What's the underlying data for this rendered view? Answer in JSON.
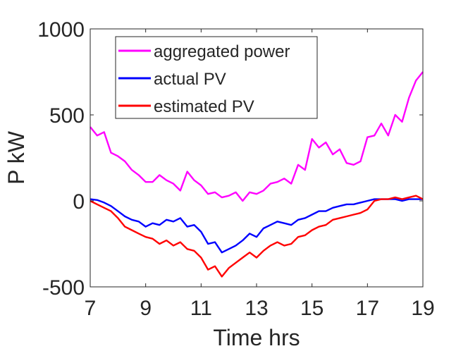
{
  "chart_data": {
    "type": "line",
    "title": "",
    "xlabel": "Time hrs",
    "ylabel": "P kW",
    "xlim": [
      7,
      19
    ],
    "ylim": [
      -500,
      1000
    ],
    "xticks": [
      7,
      9,
      11,
      13,
      15,
      17,
      19
    ],
    "yticks": [
      -500,
      0,
      500,
      1000
    ],
    "xtick_labels": [
      "7",
      "9",
      "11",
      "13",
      "15",
      "17",
      "19"
    ],
    "ytick_labels": [
      "-500",
      "0",
      "500",
      "1000"
    ],
    "grid": false,
    "legend_position": "top-center",
    "series": [
      {
        "name": "aggregated power",
        "color": "#ff00ff",
        "x": [
          7.0,
          7.25,
          7.5,
          7.75,
          8.0,
          8.25,
          8.5,
          8.75,
          9.0,
          9.25,
          9.5,
          9.75,
          10.0,
          10.25,
          10.5,
          10.75,
          11.0,
          11.25,
          11.5,
          11.75,
          12.0,
          12.25,
          12.5,
          12.75,
          13.0,
          13.25,
          13.5,
          13.75,
          14.0,
          14.25,
          14.5,
          14.75,
          15.0,
          15.25,
          15.5,
          15.75,
          16.0,
          16.25,
          16.5,
          16.75,
          17.0,
          17.25,
          17.5,
          17.75,
          18.0,
          18.25,
          18.5,
          18.75,
          19.0
        ],
        "values": [
          430,
          380,
          400,
          280,
          260,
          230,
          180,
          150,
          110,
          110,
          150,
          120,
          100,
          60,
          170,
          120,
          90,
          40,
          50,
          20,
          30,
          50,
          0,
          50,
          40,
          60,
          100,
          110,
          130,
          100,
          210,
          180,
          360,
          310,
          340,
          270,
          300,
          220,
          210,
          230,
          370,
          380,
          450,
          380,
          500,
          460,
          600,
          700,
          750
        ]
      },
      {
        "name": "actual PV",
        "color": "#0000ff",
        "x": [
          7.0,
          7.25,
          7.5,
          7.75,
          8.0,
          8.25,
          8.5,
          8.75,
          9.0,
          9.25,
          9.5,
          9.75,
          10.0,
          10.25,
          10.5,
          10.75,
          11.0,
          11.25,
          11.5,
          11.75,
          12.0,
          12.25,
          12.5,
          12.75,
          13.0,
          13.25,
          13.5,
          13.75,
          14.0,
          14.25,
          14.5,
          14.75,
          15.0,
          15.25,
          15.5,
          15.75,
          16.0,
          16.25,
          16.5,
          16.75,
          17.0,
          17.25,
          17.5,
          17.75,
          18.0,
          18.25,
          18.5,
          18.75,
          19.0
        ],
        "values": [
          10,
          5,
          -10,
          -30,
          -60,
          -90,
          -110,
          -120,
          -150,
          -130,
          -140,
          -110,
          -120,
          -100,
          -150,
          -140,
          -180,
          -250,
          -240,
          -300,
          -280,
          -260,
          -230,
          -190,
          -210,
          -160,
          -140,
          -120,
          -130,
          -140,
          -110,
          -100,
          -80,
          -60,
          -60,
          -40,
          -30,
          -20,
          -20,
          -10,
          0,
          10,
          10,
          10,
          10,
          0,
          10,
          10,
          10
        ]
      },
      {
        "name": "estimated PV",
        "color": "#ff0000",
        "x": [
          7.0,
          7.25,
          7.5,
          7.75,
          8.0,
          8.25,
          8.5,
          8.75,
          9.0,
          9.25,
          9.5,
          9.75,
          10.0,
          10.25,
          10.5,
          10.75,
          11.0,
          11.25,
          11.5,
          11.75,
          12.0,
          12.25,
          12.5,
          12.75,
          13.0,
          13.25,
          13.5,
          13.75,
          14.0,
          14.25,
          14.5,
          14.75,
          15.0,
          15.25,
          15.5,
          15.75,
          16.0,
          16.25,
          16.5,
          16.75,
          17.0,
          17.25,
          17.5,
          17.75,
          18.0,
          18.25,
          18.5,
          18.75,
          19.0
        ],
        "values": [
          0,
          -20,
          -40,
          -60,
          -100,
          -150,
          -170,
          -190,
          -210,
          -220,
          -250,
          -230,
          -260,
          -240,
          -280,
          -290,
          -330,
          -400,
          -380,
          -440,
          -390,
          -360,
          -330,
          -300,
          -330,
          -290,
          -260,
          -240,
          -260,
          -250,
          -210,
          -200,
          -170,
          -150,
          -140,
          -110,
          -100,
          -90,
          -80,
          -70,
          -50,
          0,
          10,
          10,
          20,
          10,
          20,
          30,
          10
        ]
      }
    ]
  }
}
